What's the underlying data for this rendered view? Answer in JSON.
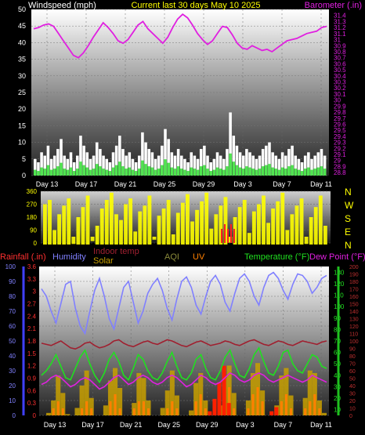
{
  "header": {
    "left_label": "Windspeed (mph)",
    "center_label": "Current last 30 days May 10 2025",
    "right_label": "Barometer (.in)"
  },
  "compass": [
    "N",
    "W",
    "S",
    "E",
    "N"
  ],
  "legend": {
    "rainfall": "Rainfall (.in)",
    "humidity": "Humidity",
    "indoor_temp": "Indoor temp",
    "solar": "Solar",
    "aqi": "AQI",
    "uv": "UV",
    "temperature": "Temperature (°F)",
    "dew_point": "Dew Point (°F)"
  },
  "colors": {
    "barometer": "#e020e0",
    "wind": "#ffffff",
    "wind_avg": "#30e030",
    "direction": "#ffff00",
    "direction_gust": "#ff2020",
    "rain_axis": "#ff3030",
    "humidity": "#8080ff",
    "indoor": "#a02030",
    "solar": "#c8a000",
    "temperature": "#20e020",
    "dew_point": "#e020e0",
    "uv": "#ff8000"
  },
  "chart_data": [
    {
      "type": "line",
      "series": [
        {
          "name": "Windspeed (mph)",
          "axis": "left",
          "values": [
            5,
            4,
            7,
            6,
            9,
            5,
            6,
            8,
            11,
            6,
            5,
            7,
            4,
            6,
            12,
            9,
            7,
            5,
            6,
            10,
            8,
            6,
            5,
            4,
            7,
            9,
            12,
            8,
            6,
            7,
            5,
            4,
            6,
            13,
            10,
            8,
            7,
            5,
            6,
            9,
            14,
            11,
            7,
            6,
            8,
            6,
            5,
            4,
            7,
            6,
            5,
            8,
            9,
            6,
            4,
            5,
            7,
            6,
            5,
            8,
            19,
            12,
            9,
            7,
            6,
            8,
            7,
            6,
            5,
            6,
            8,
            9,
            10,
            7,
            6,
            5,
            7,
            6,
            8,
            9,
            6,
            5,
            4,
            6,
            7,
            5,
            6,
            7,
            8,
            6
          ]
        },
        {
          "name": "Barometer (.in)",
          "axis": "right",
          "values": [
            31.18,
            31.2,
            31.24,
            31.26,
            31.22,
            31.1,
            30.98,
            30.86,
            30.74,
            30.7,
            30.78,
            30.9,
            31.04,
            31.16,
            31.28,
            31.2,
            31.1,
            30.98,
            30.94,
            31.0,
            31.12,
            31.24,
            31.3,
            31.18,
            31.1,
            31.02,
            30.94,
            31.04,
            31.2,
            31.34,
            31.42,
            31.36,
            31.24,
            31.1,
            31.0,
            30.92,
            30.98,
            31.1,
            31.22,
            31.2,
            31.08,
            30.94,
            30.86,
            30.84,
            30.9,
            30.86,
            30.82,
            30.84,
            30.8,
            30.86,
            30.92,
            30.98,
            31.0,
            31.02,
            31.06,
            31.1,
            31.12,
            31.14,
            31.2,
            31.22
          ]
        }
      ],
      "x_ticks": [
        "Day 13",
        "Day 17",
        "Day 21",
        "Day 25",
        "Day 29",
        "Day 3",
        "Day 7",
        "Day 11"
      ],
      "y_left_ticks": [
        0,
        5,
        10,
        15,
        20,
        25,
        30,
        35,
        40,
        45,
        50
      ],
      "y_right_ticks": [
        28.8,
        28.9,
        29,
        29.1,
        29.2,
        29.3,
        29.4,
        29.5,
        29.6,
        29.7,
        29.8,
        29.9,
        30,
        30.1,
        30.2,
        30.3,
        30.4,
        30.5,
        30.6,
        30.7,
        30.8,
        30.9,
        31,
        31.1,
        31.2,
        31.3,
        31.4
      ],
      "y_left_range": [
        0,
        50
      ],
      "y_right_range": [
        28.75,
        31.5
      ]
    },
    {
      "type": "scatter",
      "series": [
        {
          "name": "Wind direction",
          "values": [
            270,
            300,
            90,
            200,
            260,
            310,
            40,
            180,
            250,
            330,
            20,
            120,
            240,
            300,
            350,
            200,
            160,
            270,
            310,
            80,
            220,
            260,
            330,
            10,
            190,
            240,
            300,
            60,
            210,
            280,
            340,
            150,
            230,
            290,
            350,
            100,
            200,
            260,
            320,
            30,
            180,
            250,
            300,
            70,
            220,
            270,
            330,
            140,
            240,
            290,
            350,
            90,
            200,
            260,
            310,
            40,
            180,
            250,
            330,
            120
          ]
        }
      ],
      "y_ticks": [
        0,
        90,
        180,
        270,
        360
      ],
      "y_range": [
        0,
        360
      ]
    },
    {
      "type": "line",
      "series": [
        {
          "name": "Humidity",
          "axis": "humidity",
          "values": [
            85,
            80,
            70,
            62,
            75,
            88,
            90,
            72,
            60,
            55,
            70,
            84,
            92,
            80,
            65,
            58,
            72,
            86,
            90,
            76,
            62,
            70,
            82,
            88,
            92,
            84,
            72,
            64,
            78,
            90,
            93,
            86,
            74,
            68,
            80,
            90,
            94,
            88,
            76,
            70,
            82,
            92,
            95,
            90,
            80,
            74,
            86,
            94,
            96,
            92,
            84,
            78,
            88,
            95,
            94,
            90,
            82,
            86,
            92,
            94
          ]
        },
        {
          "name": "Indoor temp",
          "axis": "temperature",
          "values": [
            68,
            67,
            66,
            68,
            70,
            67,
            64,
            63,
            65,
            68,
            69,
            66,
            64,
            65,
            67,
            70,
            71,
            68,
            66,
            65,
            67,
            69,
            70,
            68,
            67,
            69,
            71,
            70,
            68,
            66,
            65,
            67,
            69,
            70,
            68,
            66,
            67,
            68,
            70,
            69,
            67,
            66,
            68,
            70,
            71,
            69,
            67,
            66,
            68,
            70,
            69,
            67,
            66,
            68,
            70,
            69,
            68,
            67,
            69,
            70
          ]
        },
        {
          "name": "Temperature (°F)",
          "axis": "temperature",
          "values": [
            40,
            44,
            50,
            58,
            48,
            38,
            36,
            46,
            56,
            62,
            50,
            40,
            34,
            42,
            54,
            60,
            52,
            40,
            36,
            46,
            58,
            54,
            44,
            38,
            36,
            42,
            52,
            60,
            48,
            38,
            36,
            42,
            54,
            58,
            46,
            38,
            36,
            44,
            56,
            62,
            50,
            40,
            38,
            46,
            58,
            64,
            52,
            42,
            40,
            48,
            60,
            62,
            50,
            44,
            42,
            50,
            58,
            56,
            48,
            46
          ]
        },
        {
          "name": "Dew Point (°F)",
          "axis": "temperature",
          "values": [
            32,
            34,
            38,
            40,
            38,
            34,
            30,
            32,
            36,
            38,
            36,
            32,
            28,
            30,
            34,
            38,
            40,
            36,
            32,
            34,
            38,
            40,
            38,
            34,
            32,
            34,
            38,
            40,
            38,
            34,
            30,
            32,
            36,
            40,
            38,
            34,
            32,
            34,
            38,
            42,
            40,
            36,
            34,
            36,
            40,
            42,
            40,
            36,
            34,
            36,
            38,
            40,
            38,
            36,
            34,
            36,
            40,
            38,
            36,
            34
          ]
        },
        {
          "name": "Solar",
          "axis": "solar",
          "values": [
            0,
            10,
            60,
            160,
            90,
            5,
            0,
            30,
            120,
            180,
            70,
            0,
            0,
            40,
            140,
            190,
            110,
            0,
            0,
            50,
            170,
            150,
            60,
            0,
            0,
            30,
            100,
            180,
            80,
            0,
            0,
            20,
            130,
            170,
            60,
            0,
            0,
            40,
            150,
            200,
            90,
            0,
            0,
            60,
            170,
            210,
            100,
            0,
            0,
            40,
            160,
            190,
            80,
            0,
            0,
            70,
            180,
            170,
            60,
            10
          ]
        },
        {
          "name": "UV",
          "axis": "uv",
          "values": [
            0,
            0,
            1,
            2,
            1,
            0,
            0,
            0,
            1,
            2,
            1,
            0,
            0,
            0,
            2,
            3,
            1,
            0,
            0,
            1,
            2,
            2,
            1,
            0,
            0,
            0,
            1,
            2,
            1,
            0,
            0,
            0,
            2,
            3,
            1,
            0,
            0,
            1,
            2,
            4,
            1,
            0,
            0,
            1,
            3,
            4,
            2,
            0,
            0,
            1,
            2,
            3,
            1,
            0,
            0,
            1,
            2,
            3,
            1,
            0
          ]
        },
        {
          "name": "Rainfall (.in)",
          "axis": "rain",
          "values": [
            0,
            0,
            0,
            0,
            0,
            0,
            0,
            0,
            0,
            0,
            0,
            0,
            0,
            0,
            0,
            0,
            0,
            0,
            0,
            0,
            0,
            0,
            0,
            0,
            0,
            0,
            0,
            0,
            0,
            0,
            0,
            0,
            0,
            0,
            0,
            0.1,
            0.4,
            0.8,
            1.2,
            0.3,
            0,
            0,
            0,
            0,
            0,
            0,
            0,
            0,
            0.1,
            0.2,
            0,
            0,
            0,
            0,
            0,
            0,
            0,
            0,
            0,
            0
          ]
        }
      ],
      "x_ticks": [
        "Day 13",
        "Day 17",
        "Day 21",
        "Day 25",
        "Day 29",
        "Day 3",
        "Day 7",
        "Day 11"
      ],
      "y_humidity_ticks": [
        0,
        10,
        20,
        30,
        40,
        50,
        60,
        70,
        80,
        90,
        100
      ],
      "y_rain_ticks": [
        0,
        0.3,
        0.6,
        0.9,
        1.2,
        1.5,
        1.8,
        2.1,
        2.4,
        2.7,
        3,
        3.3,
        3.6
      ],
      "y_temp_ticks": [
        10,
        20,
        30,
        40,
        50,
        60,
        70,
        80,
        90,
        100,
        110,
        120,
        130
      ],
      "y_temp_right_ticks": [
        0,
        10,
        20,
        30,
        40,
        50,
        60,
        70,
        80,
        90,
        100,
        110,
        120,
        130,
        140,
        150,
        160,
        170,
        180,
        190,
        200
      ]
    }
  ]
}
